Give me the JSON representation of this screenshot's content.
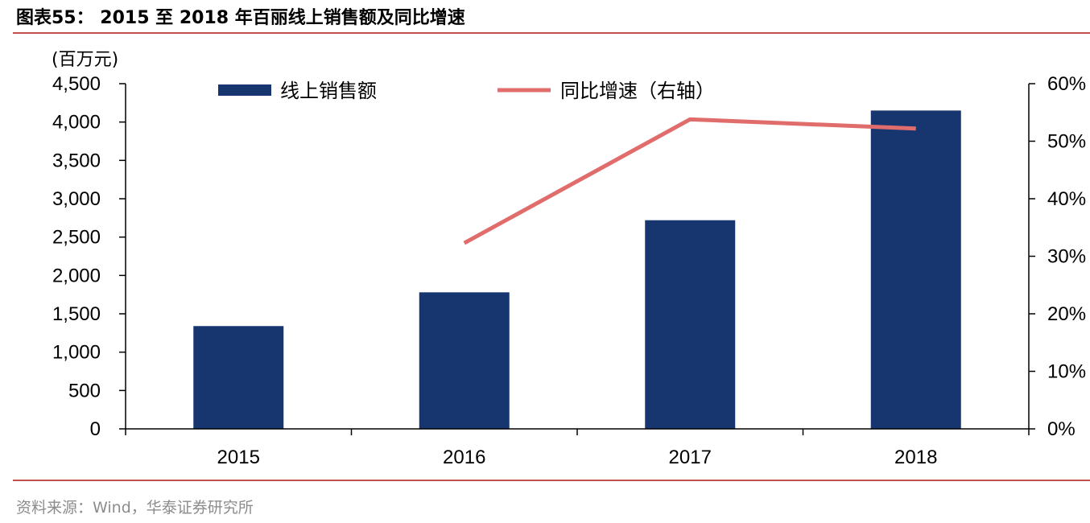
{
  "header": {
    "title": "图表55：  2015 至 2018 年百丽线上销售额及同比增速"
  },
  "footer": {
    "source": "资料来源：Wind，华泰证券研究所"
  },
  "colors": {
    "bar": "#17366f",
    "line": "#e06d6b",
    "rule": "#c0504d"
  },
  "chart_data": {
    "type": "bar",
    "categories": [
      "2015",
      "2016",
      "2017",
      "2018"
    ],
    "y_unit_label": "(百万元)",
    "ylim": [
      0,
      4500
    ],
    "y_ticks": [
      0,
      500,
      1000,
      1500,
      2000,
      2500,
      3000,
      3500,
      4000,
      4500
    ],
    "y_tick_labels": [
      "0",
      "500",
      "1,000",
      "1,500",
      "2,000",
      "2,500",
      "3,000",
      "3,500",
      "4,000",
      "4,500"
    ],
    "y2lim": [
      0,
      0.6
    ],
    "y2_ticks": [
      0,
      0.1,
      0.2,
      0.3,
      0.4,
      0.5,
      0.6
    ],
    "y2_tick_labels": [
      "0%",
      "10%",
      "20%",
      "30%",
      "40%",
      "50%",
      "60%"
    ],
    "legend_position": "top",
    "grid": false,
    "series": [
      {
        "name": "线上销售额",
        "type": "bar",
        "axis": "left",
        "values": [
          1340,
          1780,
          2720,
          4150
        ]
      },
      {
        "name": "同比增速（右轴）",
        "type": "line",
        "axis": "right",
        "values": [
          null,
          0.323,
          0.538,
          0.522
        ]
      }
    ]
  }
}
